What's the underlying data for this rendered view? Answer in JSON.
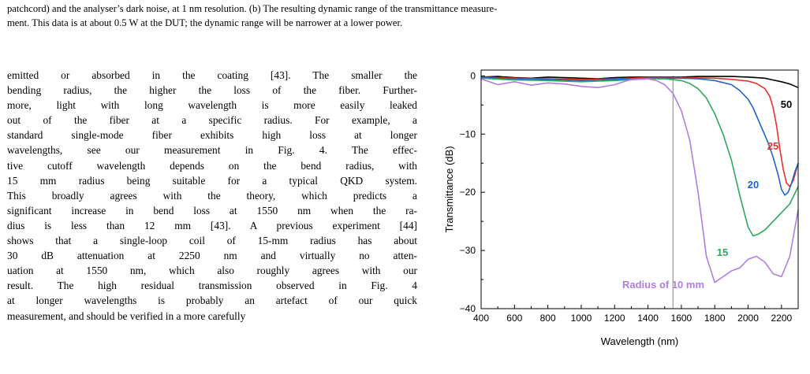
{
  "caption": {
    "lines": [
      "patchcord) and the analyser’s dark noise, at 1 nm resolution. (b) The resulting dynamic range of the transmittance measure-",
      "ment. This data is at about 0.5 W at the DUT; the dynamic range will be narrower at a lower power."
    ]
  },
  "body": {
    "lines": [
      "emitted or absorbed in the coating [43]. The smaller the",
      "bending radius, the higher the loss of the fiber. Further-",
      "more, light with long wavelength is more easily leaked",
      "out of the fiber at a specific radius.  For example, a",
      "standard single-mode fiber exhibits high loss at longer",
      "wavelengths, see our measurement in Fig. 4. The effec-",
      "tive cutoff wavelength depends on the bend radius, with",
      "15 mm radius being suitable for a typical QKD system.",
      "This broadly agrees with the theory, which predicts a",
      "significant increase in bend loss at 1550 nm when the ra-",
      "dius is less than 12 mm [43]. A previous experiment [44]",
      "shows that a single-loop coil of 15-mm radius has about",
      "30 dB attenuation at 2250 nm and virtually no atten-",
      "uation at 1550 nm, which also roughly agrees with our",
      "result. The high residual transmission observed in Fig. 4",
      "at longer wavelengths is probably an artefact of our quick",
      "measurement, and should be verified in a more carefully"
    ]
  },
  "chart_data": {
    "type": "line",
    "xlabel": "Wavelength (nm)",
    "ylabel": "Transmittance (dB)",
    "xlim": [
      400,
      2300
    ],
    "ylim": [
      -40,
      1
    ],
    "xticks": [
      "400",
      "600",
      "800",
      "1000",
      "1200",
      "1400",
      "1600",
      "1800",
      "2000",
      "2200"
    ],
    "yticks": [
      "0",
      "−10",
      "−20",
      "−30",
      "−40"
    ],
    "reference_line_x": 1550,
    "series": [
      {
        "name": "50",
        "color": "#000000",
        "x": [
          400,
          500,
          600,
          700,
          800,
          900,
          1000,
          1100,
          1200,
          1300,
          1400,
          1500,
          1600,
          1700,
          1800,
          1900,
          2000,
          2050,
          2100,
          2150,
          2200,
          2250,
          2300
        ],
        "y": [
          -0.2,
          -0.1,
          -0.3,
          -0.4,
          -0.2,
          -0.3,
          -0.4,
          -0.5,
          -0.3,
          -0.2,
          -0.2,
          -0.2,
          -0.2,
          -0.1,
          -0.1,
          -0.1,
          -0.2,
          -0.3,
          -0.4,
          -0.7,
          -1.0,
          -1.4,
          -2.0
        ]
      },
      {
        "name": "25",
        "color": "#e8312c",
        "x": [
          400,
          600,
          800,
          1000,
          1200,
          1400,
          1600,
          1800,
          1900,
          2000,
          2050,
          2100,
          2130,
          2150,
          2170,
          2190,
          2210,
          2230,
          2250,
          2270,
          2290,
          2300
        ],
        "y": [
          -0.2,
          -0.4,
          -0.5,
          -0.6,
          -0.5,
          -0.3,
          -0.3,
          -0.4,
          -0.6,
          -0.9,
          -1.3,
          -2.2,
          -3.5,
          -5.5,
          -8.5,
          -12.5,
          -16.0,
          -18.4,
          -19.0,
          -18.0,
          -16.0,
          -15.0
        ]
      },
      {
        "name": "20",
        "color": "#1f64c8",
        "x": [
          400,
          600,
          800,
          1000,
          1200,
          1400,
          1600,
          1700,
          1800,
          1900,
          1950,
          2000,
          2030,
          2060,
          2090,
          2120,
          2150,
          2180,
          2200,
          2220,
          2240,
          2260,
          2280,
          2300
        ],
        "y": [
          -0.3,
          -0.5,
          -0.6,
          -0.8,
          -0.6,
          -0.4,
          -0.4,
          -0.5,
          -0.8,
          -1.5,
          -2.5,
          -4.0,
          -5.5,
          -7.5,
          -9.5,
          -11.5,
          -14.0,
          -17.0,
          -19.5,
          -20.5,
          -20.0,
          -18.5,
          -16.5,
          -15.0
        ]
      },
      {
        "name": "15",
        "color": "#2ea85a",
        "x": [
          400,
          600,
          800,
          1000,
          1200,
          1400,
          1500,
          1600,
          1650,
          1700,
          1750,
          1800,
          1850,
          1900,
          1950,
          2000,
          2030,
          2060,
          2100,
          2150,
          2200,
          2250,
          2300
        ],
        "y": [
          -0.4,
          -0.7,
          -0.8,
          -1.0,
          -0.8,
          -0.5,
          -0.5,
          -0.8,
          -1.3,
          -2.2,
          -3.8,
          -6.5,
          -10.0,
          -14.5,
          -20.5,
          -26.0,
          -27.5,
          -27.2,
          -26.5,
          -25.0,
          -23.5,
          -22.0,
          -19.0
        ]
      },
      {
        "name": "Radius of 10 mm",
        "color": "#b07de0",
        "x": [
          400,
          500,
          600,
          700,
          800,
          900,
          1000,
          1100,
          1200,
          1300,
          1400,
          1450,
          1500,
          1550,
          1600,
          1650,
          1700,
          1750,
          1800,
          1850,
          1900,
          1950,
          2000,
          2050,
          2100,
          2150,
          2200,
          2250,
          2300
        ],
        "y": [
          -0.5,
          -1.5,
          -1.0,
          -1.6,
          -1.2,
          -1.4,
          -1.8,
          -2.0,
          -1.5,
          -0.6,
          -0.5,
          -0.8,
          -1.5,
          -3.0,
          -6.0,
          -11.0,
          -20.0,
          -31.0,
          -35.5,
          -34.5,
          -33.5,
          -33.0,
          -31.5,
          -31.0,
          -32.0,
          -34.0,
          -34.5,
          -31.0,
          -23.0
        ]
      }
    ],
    "labels": [
      {
        "text": "50",
        "color": "#000000"
      },
      {
        "text": "25",
        "color": "#e8312c"
      },
      {
        "text": "20",
        "color": "#1f64c8"
      },
      {
        "text": "15",
        "color": "#2ea85a"
      },
      {
        "text": "Radius of 10 mm",
        "color": "#b07de0"
      }
    ]
  }
}
